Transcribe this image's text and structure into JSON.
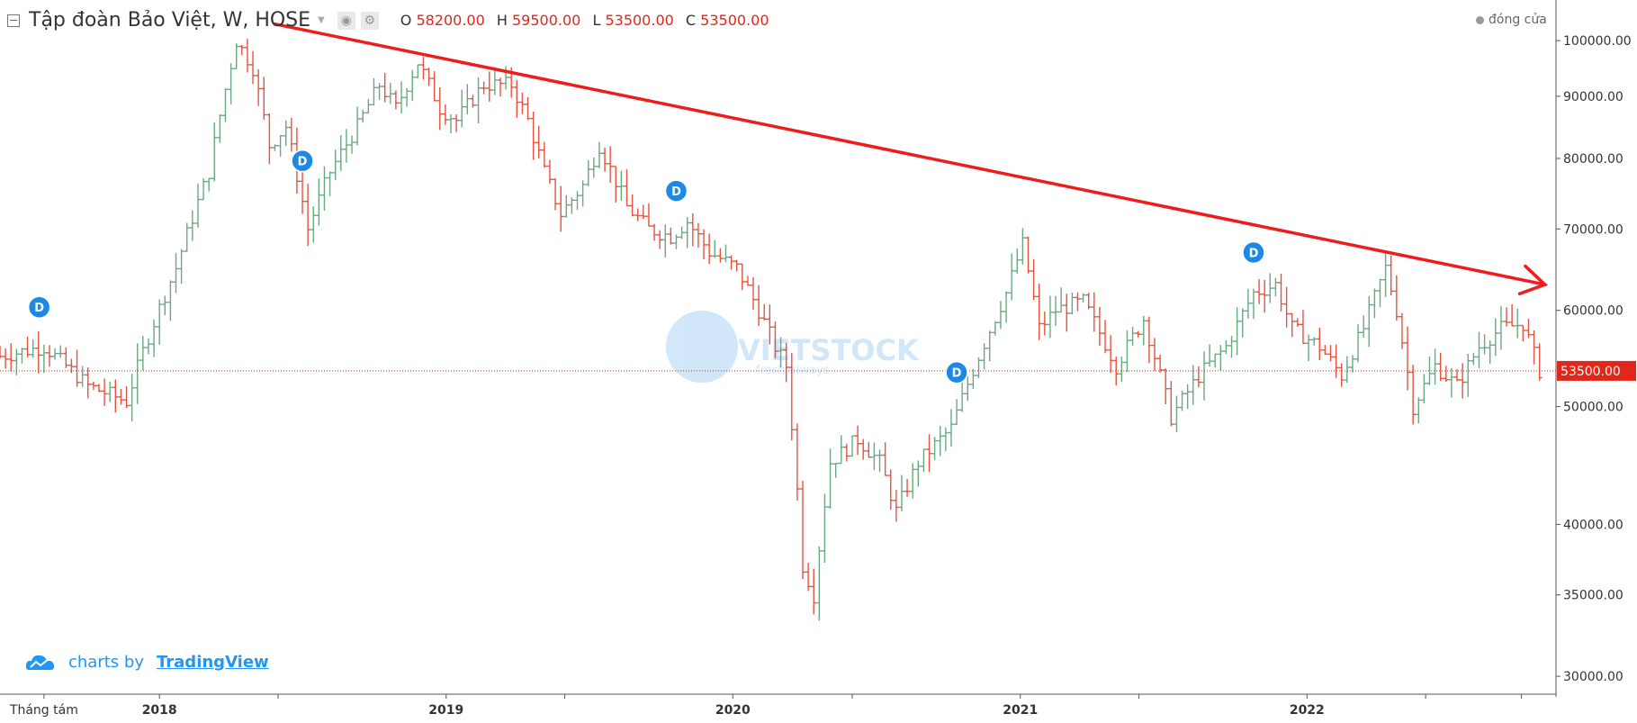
{
  "header": {
    "symbol": "Tập đoàn Bảo Việt, W, HOSE",
    "open_key": "O",
    "open": "58200.00",
    "high_key": "H",
    "high": "59500.00",
    "low_key": "L",
    "low": "53500.00",
    "close_key": "C",
    "close": "53500.00",
    "close_label": "đóng cửa"
  },
  "branding": {
    "text": "charts by",
    "link": "TradingView"
  },
  "watermark": {
    "text": "VIETSTOCK",
    "tagline": "fresh always"
  },
  "colors": {
    "up": "#6aa882",
    "down": "#e4533f",
    "trend": "#ef1c1c",
    "dividend": "#1e88e5",
    "price_label": "#e0271a"
  },
  "chart_data": {
    "type": "ohlc",
    "title": "Tập đoàn Bảo Việt, W, HOSE",
    "scale": "log",
    "ylim": [
      29000,
      108000
    ],
    "y_ticks": [
      30000,
      35000,
      40000,
      50000,
      60000,
      70000,
      80000,
      90000,
      100000
    ],
    "y_tick_labels": [
      "30000.00",
      "35000.00",
      "40000.00",
      "50000.00",
      "60000.00",
      "70000.00",
      "80000.00",
      "90000.00",
      "100000.00"
    ],
    "x_range": [
      "2017-06-12",
      "2022-11-14"
    ],
    "x_ticks": [
      {
        "date": "2017-08-07",
        "label": "Tháng tám"
      },
      {
        "date": "2018-01-01",
        "label": "2018"
      },
      {
        "date": "2019-01-01",
        "label": "2019"
      },
      {
        "date": "2020-01-01",
        "label": "2020"
      },
      {
        "date": "2021-01-01",
        "label": "2021"
      },
      {
        "date": "2022-01-01",
        "label": "2022"
      }
    ],
    "last_price": 53500,
    "last_price_label": "53500.00",
    "dividend_marker_label": "D",
    "dividends": [
      "2017-08-01",
      "2018-07-02",
      "2019-10-21",
      "2020-10-12",
      "2021-10-25"
    ],
    "trendline": {
      "start": {
        "date": "2018-05-28",
        "price": 103200
      },
      "end": {
        "date": "2022-10-31",
        "price": 63000
      }
    },
    "anchors": [
      [
        "2017-06-12",
        55000
      ],
      [
        "2017-08-07",
        56000
      ],
      [
        "2017-10-02",
        52000
      ],
      [
        "2017-11-20",
        50500
      ],
      [
        "2017-12-11",
        55500
      ],
      [
        "2018-01-22",
        65000
      ],
      [
        "2018-03-05",
        78000
      ],
      [
        "2018-04-09",
        100000
      ],
      [
        "2018-04-30",
        95000
      ],
      [
        "2018-05-21",
        82000
      ],
      [
        "2018-06-11",
        85000
      ],
      [
        "2018-07-09",
        70000
      ],
      [
        "2018-08-06",
        78000
      ],
      [
        "2018-09-10",
        85000
      ],
      [
        "2018-10-08",
        92000
      ],
      [
        "2018-10-29",
        88000
      ],
      [
        "2018-11-26",
        96000
      ],
      [
        "2018-12-24",
        88000
      ],
      [
        "2019-01-14",
        86000
      ],
      [
        "2019-02-18",
        92000
      ],
      [
        "2019-03-25",
        92000
      ],
      [
        "2019-04-15",
        86000
      ],
      [
        "2019-05-06",
        78000
      ],
      [
        "2019-05-27",
        72000
      ],
      [
        "2019-06-24",
        76000
      ],
      [
        "2019-07-15",
        82000
      ],
      [
        "2019-08-19",
        73000
      ],
      [
        "2019-09-16",
        70000
      ],
      [
        "2019-10-14",
        69000
      ],
      [
        "2019-11-04",
        71000
      ],
      [
        "2019-12-02",
        67000
      ],
      [
        "2020-01-06",
        65000
      ],
      [
        "2020-02-03",
        60000
      ],
      [
        "2020-02-24",
        56000
      ],
      [
        "2020-03-09",
        54000
      ],
      [
        "2020-03-30",
        37000
      ],
      [
        "2020-04-13",
        35000
      ],
      [
        "2020-05-04",
        45000
      ],
      [
        "2020-06-08",
        47000
      ],
      [
        "2020-07-06",
        45000
      ],
      [
        "2020-07-27",
        41000
      ],
      [
        "2020-08-24",
        45000
      ],
      [
        "2020-10-05",
        48000
      ],
      [
        "2020-11-09",
        55000
      ],
      [
        "2020-12-14",
        62000
      ],
      [
        "2021-01-04",
        68000
      ],
      [
        "2021-01-25",
        58000
      ],
      [
        "2021-02-15",
        60000
      ],
      [
        "2021-03-22",
        61000
      ],
      [
        "2021-05-03",
        54000
      ],
      [
        "2021-06-07",
        59000
      ],
      [
        "2021-07-12",
        49000
      ],
      [
        "2021-08-16",
        53000
      ],
      [
        "2021-09-20",
        56000
      ],
      [
        "2021-10-25",
        62000
      ],
      [
        "2021-11-22",
        63000
      ],
      [
        "2021-12-13",
        58000
      ],
      [
        "2022-01-17",
        56000
      ],
      [
        "2022-02-14",
        53000
      ],
      [
        "2022-03-14",
        58000
      ],
      [
        "2022-04-11",
        65000
      ],
      [
        "2022-04-25",
        60000
      ],
      [
        "2022-05-16",
        50000
      ],
      [
        "2022-06-13",
        54000
      ],
      [
        "2022-07-11",
        52000
      ],
      [
        "2022-08-08",
        56000
      ],
      [
        "2022-09-05",
        58000
      ],
      [
        "2022-10-03",
        58500
      ],
      [
        "2022-10-24",
        53500
      ]
    ]
  }
}
